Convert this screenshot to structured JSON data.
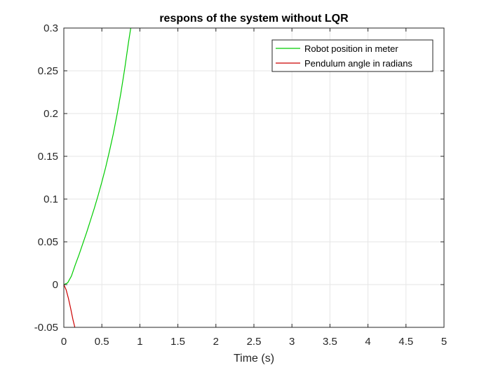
{
  "chart_data": {
    "type": "line",
    "title": "respons of the system without LQR",
    "xlabel": "Time (s)",
    "ylabel": "",
    "xlim": [
      0,
      5
    ],
    "ylim": [
      -0.05,
      0.3
    ],
    "xticks": [
      0,
      0.5,
      1,
      1.5,
      2,
      2.5,
      3,
      3.5,
      4,
      4.5,
      5
    ],
    "yticks": [
      -0.05,
      0,
      0.05,
      0.1,
      0.15,
      0.2,
      0.25,
      0.3
    ],
    "xtick_labels": [
      "0",
      "0.5",
      "1",
      "1.5",
      "2",
      "2.5",
      "3",
      "3.5",
      "4",
      "4.5",
      "5"
    ],
    "ytick_labels": [
      "-0.05",
      "0",
      "0.05",
      "0.1",
      "0.15",
      "0.2",
      "0.25",
      "0.3"
    ],
    "grid": true,
    "legend_position": "top-right",
    "series": [
      {
        "name": "Robot position in meter",
        "color": "#00cc00",
        "x": [
          0,
          0.05,
          0.1,
          0.15,
          0.2,
          0.25,
          0.3,
          0.35,
          0.4,
          0.45,
          0.5,
          0.55,
          0.6,
          0.65,
          0.7,
          0.75,
          0.8,
          0.85,
          0.88
        ],
        "y": [
          0,
          0.002,
          0.01,
          0.023,
          0.035,
          0.048,
          0.061,
          0.075,
          0.089,
          0.104,
          0.12,
          0.137,
          0.156,
          0.176,
          0.199,
          0.224,
          0.252,
          0.283,
          0.3
        ]
      },
      {
        "name": "Pendulum angle in radians",
        "color": "#cc0000",
        "x": [
          0,
          0.03,
          0.06,
          0.09,
          0.12,
          0.145
        ],
        "y": [
          0,
          -0.006,
          -0.016,
          -0.028,
          -0.041,
          -0.05
        ]
      }
    ]
  }
}
